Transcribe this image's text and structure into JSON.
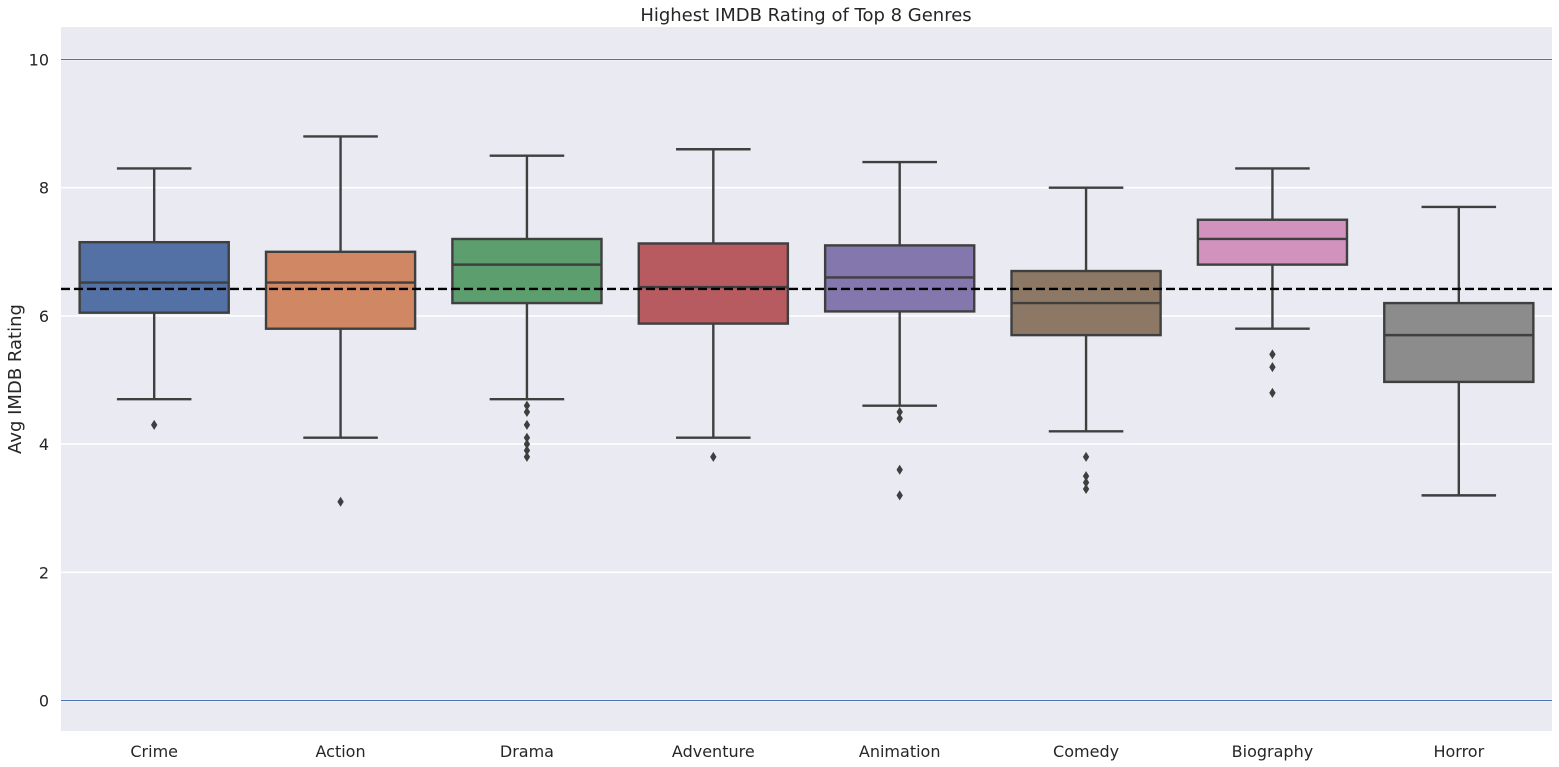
{
  "chart_data": {
    "type": "box",
    "title": "Highest IMDB Rating of Top 8 Genres",
    "xlabel": "",
    "ylabel": "Avg IMDB Rating",
    "ylim": [
      -0.45,
      10.45
    ],
    "yticks": [
      0,
      2,
      4,
      6,
      8,
      10
    ],
    "grid": true,
    "reference_lines": [
      {
        "kind": "solid",
        "value": 10,
        "color": "#4c72b0"
      },
      {
        "kind": "solid",
        "value": 0,
        "color": "#4c72b0"
      },
      {
        "kind": "dashed",
        "value": 6.42,
        "color": "#000000"
      }
    ],
    "categories": [
      "Crime",
      "Action",
      "Drama",
      "Adventure",
      "Animation",
      "Comedy",
      "Biography",
      "Horror"
    ],
    "boxes": [
      {
        "name": "Crime",
        "color": "#5471a6",
        "whisker_low": 4.7,
        "q1": 6.05,
        "median": 6.52,
        "q3": 7.15,
        "whisker_high": 8.3,
        "outliers": [
          4.3
        ]
      },
      {
        "name": "Action",
        "color": "#cf8863",
        "whisker_low": 4.1,
        "q1": 5.8,
        "median": 6.52,
        "q3": 7.0,
        "whisker_high": 8.8,
        "outliers": [
          3.1
        ]
      },
      {
        "name": "Drama",
        "color": "#5c9e6d",
        "whisker_low": 4.7,
        "q1": 6.2,
        "median": 6.8,
        "q3": 7.2,
        "whisker_high": 8.5,
        "outliers": [
          4.6,
          4.5,
          4.3,
          4.1,
          4.0,
          3.9,
          3.8
        ]
      },
      {
        "name": "Adventure",
        "color": "#b85b60",
        "whisker_low": 4.1,
        "q1": 5.88,
        "median": 6.45,
        "q3": 7.13,
        "whisker_high": 8.6,
        "outliers": [
          3.8
        ]
      },
      {
        "name": "Animation",
        "color": "#8477ae",
        "whisker_low": 4.6,
        "q1": 6.07,
        "median": 6.6,
        "q3": 7.1,
        "whisker_high": 8.4,
        "outliers": [
          4.5,
          4.4,
          3.6,
          3.2
        ]
      },
      {
        "name": "Comedy",
        "color": "#8d7866",
        "whisker_low": 4.2,
        "q1": 5.7,
        "median": 6.2,
        "q3": 6.7,
        "whisker_high": 8.0,
        "outliers": [
          3.8,
          3.5,
          3.4,
          3.3
        ]
      },
      {
        "name": "Biography",
        "color": "#d193bd",
        "whisker_low": 5.8,
        "q1": 6.8,
        "median": 7.2,
        "q3": 7.5,
        "whisker_high": 8.3,
        "outliers": [
          5.4,
          5.2,
          4.8
        ]
      },
      {
        "name": "Horror",
        "color": "#8c8c8c",
        "whisker_low": 3.2,
        "q1": 4.97,
        "median": 5.7,
        "q3": 6.2,
        "whisker_high": 7.7,
        "outliers": []
      }
    ]
  }
}
